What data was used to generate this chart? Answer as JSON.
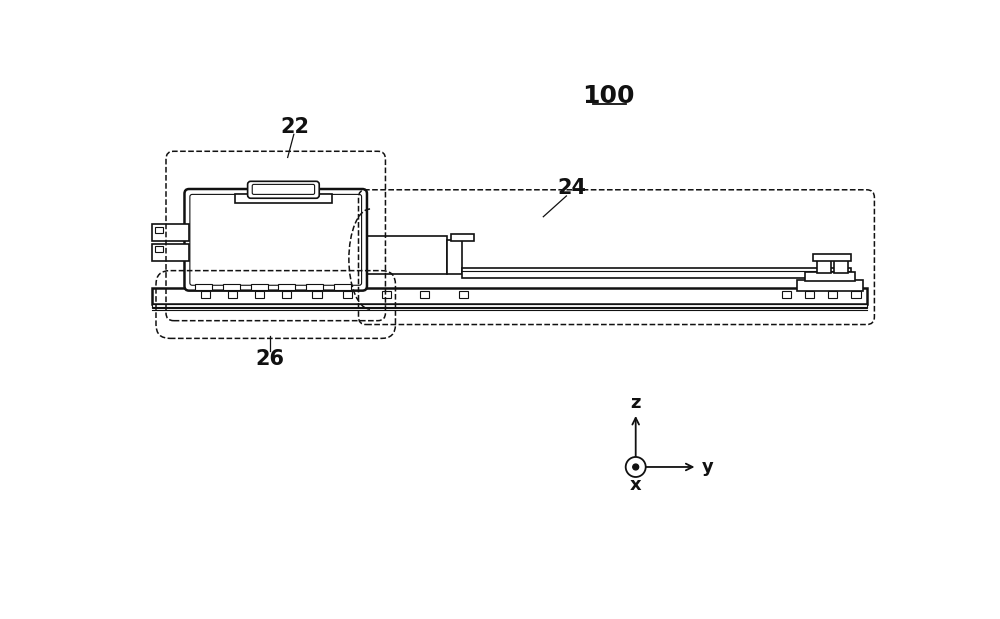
{
  "bg_color": "#ffffff",
  "lc": "#111111",
  "label_100": "100",
  "label_22": "22",
  "label_24": "24",
  "label_26": "26",
  "axis_z": "z",
  "axis_y": "y",
  "axis_x": "x",
  "fig_width": 10.0,
  "fig_height": 6.19,
  "dpi": 100,
  "lw_thick": 1.8,
  "lw_med": 1.2,
  "lw_thin": 0.8,
  "lw_dash": 1.1
}
